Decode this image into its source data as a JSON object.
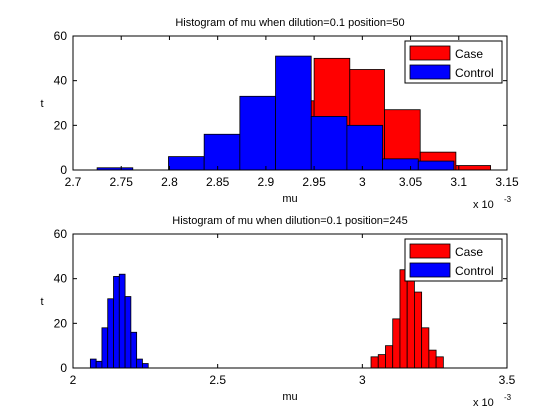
{
  "figure": {
    "background": "#ffffff"
  },
  "colors": {
    "case": "#ff0000",
    "control": "#0000ff",
    "edge": "#000000"
  },
  "chart_data": [
    {
      "type": "histogram",
      "title": "Histogram of mu when dilution=0.1 position=50",
      "xlabel": "mu",
      "ylabel": "t",
      "x_exponent_label": "x 10",
      "x_exponent_power": "-3",
      "xlim": [
        2.7,
        3.15
      ],
      "ylim": [
        0,
        60
      ],
      "xticks": [
        2.7,
        2.75,
        2.8,
        2.85,
        2.9,
        2.95,
        3.0,
        3.05,
        3.1,
        3.15
      ],
      "xtick_labels": [
        "2.7",
        "2.75",
        "2.8",
        "2.85",
        "2.9",
        "2.95",
        "3",
        "3.05",
        "3.1",
        "3.15"
      ],
      "yticks": [
        0,
        20,
        40,
        60
      ],
      "ytick_labels": [
        "0",
        "20",
        "40",
        "60"
      ],
      "grid": false,
      "legend_position": "top-right",
      "series": [
        {
          "name": "Case",
          "color": "#ff0000",
          "bin_edges": [
            2.8,
            2.84,
            2.877,
            2.913,
            2.95,
            2.987,
            3.023,
            3.06,
            3.097,
            3.133
          ],
          "counts": [
            1,
            7,
            26,
            31,
            50,
            45,
            27,
            8,
            2
          ]
        },
        {
          "name": "Control",
          "color": "#0000ff",
          "bin_edges": [
            2.725,
            2.762,
            2.799,
            2.836,
            2.873,
            2.91,
            2.947,
            2.984,
            3.021,
            3.058,
            3.095
          ],
          "counts": [
            1,
            0,
            6,
            16,
            33,
            51,
            24,
            20,
            5,
            4
          ]
        }
      ]
    },
    {
      "type": "histogram",
      "title": "Histogram of mu when dilution=0.1 position=245",
      "xlabel": "mu",
      "ylabel": "t",
      "x_exponent_label": "x 10",
      "x_exponent_power": "-3",
      "xlim": [
        2.0,
        3.5
      ],
      "ylim": [
        0,
        60
      ],
      "xticks": [
        2.0,
        2.5,
        3.0,
        3.5
      ],
      "xtick_labels": [
        "2",
        "2.5",
        "3",
        "3.5"
      ],
      "yticks": [
        0,
        20,
        40,
        60
      ],
      "ytick_labels": [
        "0",
        "20",
        "40",
        "60"
      ],
      "grid": false,
      "legend_position": "top-right",
      "series": [
        {
          "name": "Case",
          "color": "#ff0000",
          "bin_edges": [
            3.03,
            3.055,
            3.08,
            3.105,
            3.13,
            3.155,
            3.18,
            3.205,
            3.23,
            3.255,
            3.28
          ],
          "counts": [
            5,
            6,
            10,
            22,
            44,
            45,
            34,
            18,
            8,
            5
          ]
        },
        {
          "name": "Control",
          "color": "#0000ff",
          "bin_edges": [
            2.06,
            2.08,
            2.1,
            2.12,
            2.14,
            2.16,
            2.18,
            2.2,
            2.22,
            2.24,
            2.26
          ],
          "counts": [
            4,
            3,
            18,
            31,
            41,
            42,
            32,
            16,
            4,
            2
          ]
        }
      ]
    }
  ]
}
